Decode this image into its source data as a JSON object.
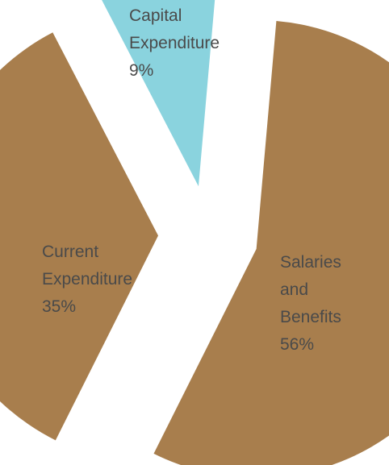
{
  "chart_data": {
    "type": "pie",
    "title": "",
    "slices": [
      {
        "label_lines": [
          "Salaries",
          "and",
          "Benefits"
        ],
        "value": 56,
        "value_label": "56%",
        "color": "#a87e4d"
      },
      {
        "label_lines": [
          "Current",
          "Expenditure"
        ],
        "value": 35,
        "value_label": "35%",
        "color": "#a87e4d"
      },
      {
        "label_lines": [
          "Capital",
          "Expenditure"
        ],
        "value": 9,
        "value_label": "9%",
        "color": "#8ad3de"
      }
    ],
    "legend": "none",
    "exploded": true
  }
}
